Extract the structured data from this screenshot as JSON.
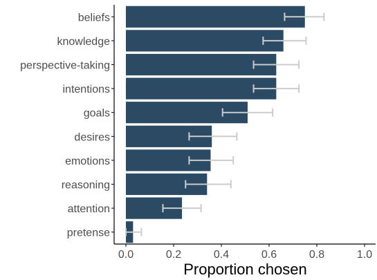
{
  "chart_data": {
    "type": "bar",
    "orientation": "horizontal",
    "categories": [
      "beliefs",
      "knowledge",
      "perspective-taking",
      "intentions",
      "goals",
      "desires",
      "emotions",
      "reasoning",
      "attention",
      "pretense"
    ],
    "values": [
      0.75,
      0.66,
      0.63,
      0.63,
      0.51,
      0.36,
      0.355,
      0.34,
      0.235,
      0.03
    ],
    "error_low": [
      0.665,
      0.575,
      0.535,
      0.535,
      0.405,
      0.265,
      0.265,
      0.25,
      0.155,
      0.0
    ],
    "error_high": [
      0.83,
      0.755,
      0.725,
      0.725,
      0.615,
      0.465,
      0.45,
      0.44,
      0.315,
      0.065
    ],
    "xlabel": "Proportion chosen",
    "ylabel": "",
    "xlim": [
      0,
      1
    ],
    "xticks": [
      "0.0",
      "0.2",
      "0.4",
      "0.6",
      "0.8",
      "1.0"
    ],
    "grid": false,
    "colors": {
      "bar": "#2b4a63",
      "errorbar": "#cccccc",
      "axis": "#000000"
    }
  }
}
